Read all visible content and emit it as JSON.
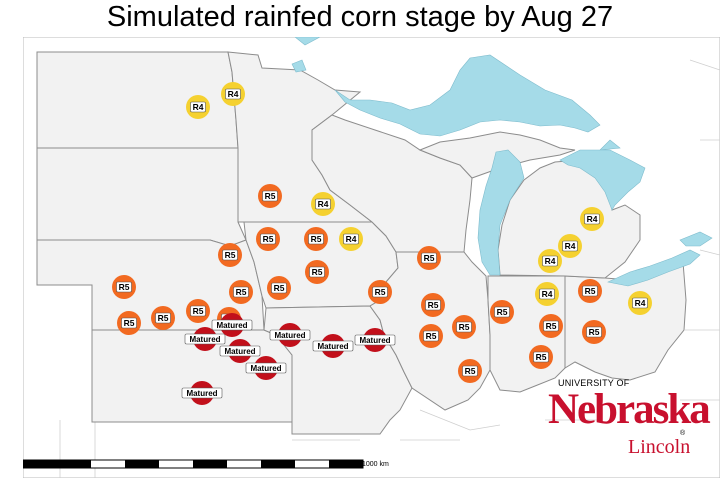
{
  "title": "Simulated rainfed corn stage by Aug 27",
  "colors": {
    "R4": "#f5d130",
    "R5": "#f26a21",
    "Matured": "#c2101b",
    "water": "#a5dbe8",
    "land": "#f2f2f2",
    "border": "#8c8c8c"
  },
  "scale_bar": {
    "label": "1000 km"
  },
  "logo": {
    "university": "UNIVERSITY OF",
    "name": "Nebraska",
    "campus": "Lincoln",
    "reg": "®"
  },
  "stations": [
    {
      "stage": "R4"
    },
    {
      "stage": "R4"
    },
    {
      "stage": "R5"
    },
    {
      "stage": "R4"
    },
    {
      "stage": "R4"
    },
    {
      "stage": "R5"
    },
    {
      "stage": "R5"
    },
    {
      "stage": "R4"
    },
    {
      "stage": "R4"
    },
    {
      "stage": "R4"
    },
    {
      "stage": "R5"
    },
    {
      "stage": "R5"
    },
    {
      "stage": "R5"
    },
    {
      "stage": "R5"
    },
    {
      "stage": "R5"
    },
    {
      "stage": "R5"
    },
    {
      "stage": "R5"
    },
    {
      "stage": "R5"
    },
    {
      "stage": "R5"
    },
    {
      "stage": "R5"
    },
    {
      "stage": "R5"
    },
    {
      "stage": "R4"
    },
    {
      "stage": "R5"
    },
    {
      "stage": "R4"
    },
    {
      "stage": "R5"
    },
    {
      "stage": "R5"
    },
    {
      "stage": "R5"
    },
    {
      "stage": "R5"
    },
    {
      "stage": "R5"
    },
    {
      "stage": "R5"
    },
    {
      "stage": "R5"
    },
    {
      "stage": "R5"
    },
    {
      "stage": "Matured"
    },
    {
      "stage": "Matured"
    },
    {
      "stage": "Matured"
    },
    {
      "stage": "Matured"
    },
    {
      "stage": "Matured"
    },
    {
      "stage": "Matured"
    },
    {
      "stage": "Matured"
    },
    {
      "stage": "Matured"
    }
  ]
}
